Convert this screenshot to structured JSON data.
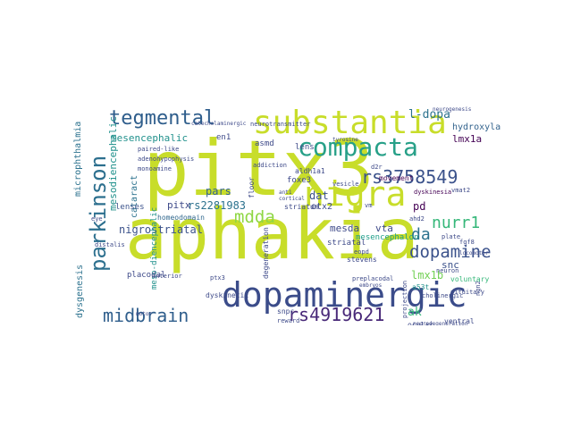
{
  "words": [
    {
      "text": "pitx3",
      "color": "#c8dd2a"
    },
    {
      "text": "aphakia",
      "color": "#c8dd2a"
    },
    {
      "text": "substantia",
      "color": "#c8dd2a"
    },
    {
      "text": "compacta",
      "color": "#27a088"
    },
    {
      "text": "nigra",
      "color": "#c8dd2a"
    },
    {
      "text": "dopaminergic",
      "color": "#3b4c8a"
    },
    {
      "text": "parkinson",
      "color": "#2c6f8e"
    },
    {
      "text": "tegmental",
      "color": "#2f5e8c"
    },
    {
      "text": "midbrain",
      "color": "#2f5e8c"
    },
    {
      "text": "rs3758549",
      "color": "#3b528b"
    },
    {
      "text": "rs4919621",
      "color": "#482878"
    },
    {
      "text": "mdda",
      "color": "#8fd744"
    },
    {
      "text": "dopamine",
      "color": "#3b528b"
    },
    {
      "text": "nurr1",
      "color": "#35b779"
    },
    {
      "text": "da",
      "color": "#2c728e"
    },
    {
      "text": "l-dopa",
      "color": "#2c728e"
    },
    {
      "text": "hydroxylase",
      "color": "#33638d"
    },
    {
      "text": "lmx1a",
      "color": "#440154"
    },
    {
      "text": "lmx1b",
      "color": "#73d055"
    },
    {
      "text": "mesencephalic",
      "color": "#21918c"
    },
    {
      "text": "nigrostriatal",
      "color": "#3b528b"
    },
    {
      "text": "rs2281983",
      "color": "#2c728e"
    },
    {
      "text": "pitx",
      "color": "#3e4a89"
    },
    {
      "text": "mesda",
      "color": "#3e4a89"
    },
    {
      "text": "vta",
      "color": "#3e4a89"
    },
    {
      "text": "pd",
      "color": "#440154"
    },
    {
      "text": "dat",
      "color": "#3b528b"
    },
    {
      "text": "pars",
      "color": "#33638d"
    },
    {
      "text": "striatal",
      "color": "#3e4a89"
    },
    {
      "text": "mesencephalon",
      "color": "#1f9e89"
    },
    {
      "text": "snc",
      "color": "#3b528b"
    },
    {
      "text": "ak",
      "color": "#35b779"
    },
    {
      "text": "mesodiencephalic",
      "color": "#21918c"
    },
    {
      "text": "meso-diencephalic",
      "color": "#21918c"
    },
    {
      "text": "cataract",
      "color": "#2c728e"
    },
    {
      "text": "microphthalmia",
      "color": "#2c728e"
    },
    {
      "text": "dysgenesis",
      "color": "#2c728e"
    },
    {
      "text": "lenses",
      "color": "#3b528b"
    },
    {
      "text": "homeodomain",
      "color": "#31688e"
    },
    {
      "text": "en1",
      "color": "#3e4a89"
    },
    {
      "text": "asmd",
      "color": "#3e4a89"
    },
    {
      "text": "lens",
      "color": "#3e4a89"
    },
    {
      "text": "foxe3",
      "color": "#3e4a89"
    },
    {
      "text": "aldh1a1",
      "color": "#3e4a89"
    },
    {
      "text": "otx2",
      "color": "#3e4a89"
    },
    {
      "text": "striatum",
      "color": "#3e4a89"
    },
    {
      "text": "degeneration",
      "color": "#3e4a89"
    },
    {
      "text": "dyskinetic",
      "color": "#3e4a89"
    },
    {
      "text": "snpc",
      "color": "#3e4a89"
    },
    {
      "text": "placodal",
      "color": "#3e4a89"
    },
    {
      "text": "a53t",
      "color": "#21918c"
    },
    {
      "text": "movement",
      "color": "#440154"
    },
    {
      "text": "dyskinesia",
      "color": "#440154"
    },
    {
      "text": "vmat2",
      "color": "#3e4a89"
    },
    {
      "text": "voluntary",
      "color": "#35b779"
    },
    {
      "text": "ventral",
      "color": "#3e4a89"
    },
    {
      "text": "ocular",
      "color": "#3e4a89"
    },
    {
      "text": "stevens",
      "color": "#3e4a89"
    },
    {
      "text": "preplacodal",
      "color": "#3e4a89"
    },
    {
      "text": "adenohypophysis",
      "color": "#3e4a89"
    },
    {
      "text": "paired-like",
      "color": "#3e4a89"
    },
    {
      "text": "monoamine",
      "color": "#3e4a89"
    },
    {
      "text": "neurotransmitter",
      "color": "#3e4a89"
    },
    {
      "text": "anterior",
      "color": "#3e4a89"
    },
    {
      "text": "eye",
      "color": "#3e4a89"
    },
    {
      "text": "distalis",
      "color": "#3e4a89"
    },
    {
      "text": "ahd2",
      "color": "#3e4a89"
    },
    {
      "text": "plate",
      "color": "#3e4a89"
    },
    {
      "text": "d2r",
      "color": "#3e4a89"
    },
    {
      "text": "vesicle",
      "color": "#3e4a89"
    },
    {
      "text": "vm",
      "color": "#3e4a89"
    },
    {
      "text": "eopd",
      "color": "#3e4a89"
    },
    {
      "text": "floor",
      "color": "#3e4a89"
    },
    {
      "text": "reward",
      "color": "#3e4a89"
    },
    {
      "text": "neuron",
      "color": "#3e4a89"
    },
    {
      "text": "pituitary",
      "color": "#3e4a89"
    },
    {
      "text": "ngn2",
      "color": "#3e4a89"
    },
    {
      "text": "neurogenesis",
      "color": "#3e4a89"
    },
    {
      "text": "neurodegeneration",
      "color": "#3e4a89"
    },
    {
      "text": "cholinergic",
      "color": "#3e4a89"
    },
    {
      "text": "projection",
      "color": "#3e4a89"
    },
    {
      "text": "ptx3",
      "color": "#3e4a89"
    },
    {
      "text": "fgf8",
      "color": "#3e4a89"
    },
    {
      "text": "tyrosine",
      "color": "#3e4a89"
    },
    {
      "text": "locomotor",
      "color": "#3e4a89"
    },
    {
      "text": "embryos",
      "color": "#3e4a89"
    },
    {
      "text": "motor",
      "color": "#3e4a89"
    },
    {
      "text": "addiction",
      "color": "#3e4a89"
    },
    {
      "text": "ant1",
      "color": "#3e4a89"
    },
    {
      "text": "catecholaminergic",
      "color": "#3e4a89"
    },
    {
      "text": "cortical",
      "color": "#3e4a89"
    }
  ]
}
